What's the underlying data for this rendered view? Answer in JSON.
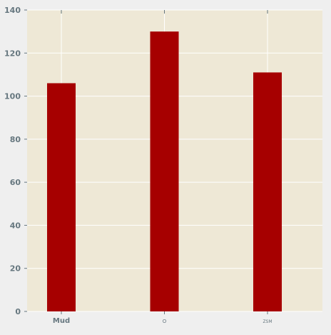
{
  "chart_data": {
    "type": "bar",
    "categories": [
      "Mud",
      "O",
      "ZSM"
    ],
    "values": [
      106,
      130,
      111
    ],
    "ylim": [
      0,
      140
    ],
    "yticks": [
      0,
      20,
      40,
      60,
      80,
      100,
      120,
      140
    ],
    "title": "",
    "xlabel": "",
    "ylabel": "",
    "grid": true,
    "legend": "none",
    "colors": {
      "plot_background": "#eee8d6",
      "bar": "#a60000",
      "grid": "#ffffff",
      "tick_label": "#66777f",
      "page_background": "#efefef"
    }
  }
}
